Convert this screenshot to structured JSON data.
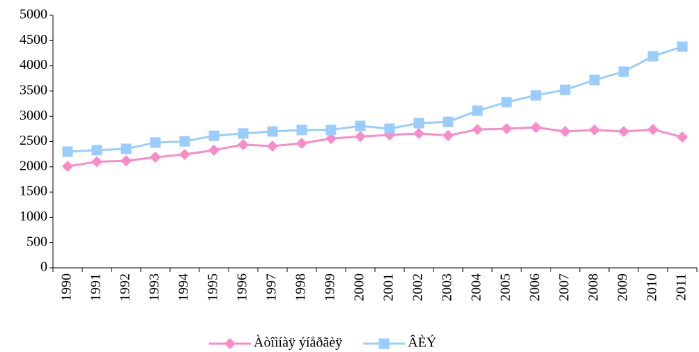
{
  "chart_data": {
    "type": "line",
    "categories": [
      "1990",
      "1991",
      "1992",
      "1993",
      "1994",
      "1995",
      "1996",
      "1997",
      "1998",
      "1999",
      "2000",
      "2001",
      "2002",
      "2003",
      "2004",
      "2005",
      "2006",
      "2007",
      "2008",
      "2009",
      "2010",
      "2011"
    ],
    "series": [
      {
        "name": "Àòîìíàÿ ýíåðãèÿ",
        "color": "#f98bc8",
        "marker": "diamond",
        "values": [
          2010,
          2100,
          2120,
          2190,
          2245,
          2330,
          2440,
          2410,
          2465,
          2560,
          2600,
          2630,
          2660,
          2620,
          2740,
          2755,
          2780,
          2700,
          2730,
          2700,
          2740,
          2590
        ]
      },
      {
        "name": "ÂÈÝ",
        "color": "#99ccff",
        "marker": "square",
        "values": [
          2300,
          2330,
          2355,
          2480,
          2505,
          2615,
          2660,
          2700,
          2730,
          2730,
          2810,
          2755,
          2865,
          2890,
          3110,
          3280,
          3415,
          3525,
          3720,
          3885,
          4190,
          4380
        ]
      }
    ],
    "ylim": [
      0,
      5000
    ],
    "yticks": [
      0,
      500,
      1000,
      1500,
      2000,
      2500,
      3000,
      3500,
      4000,
      4500,
      5000
    ],
    "grid": false,
    "legend": "bottom"
  }
}
